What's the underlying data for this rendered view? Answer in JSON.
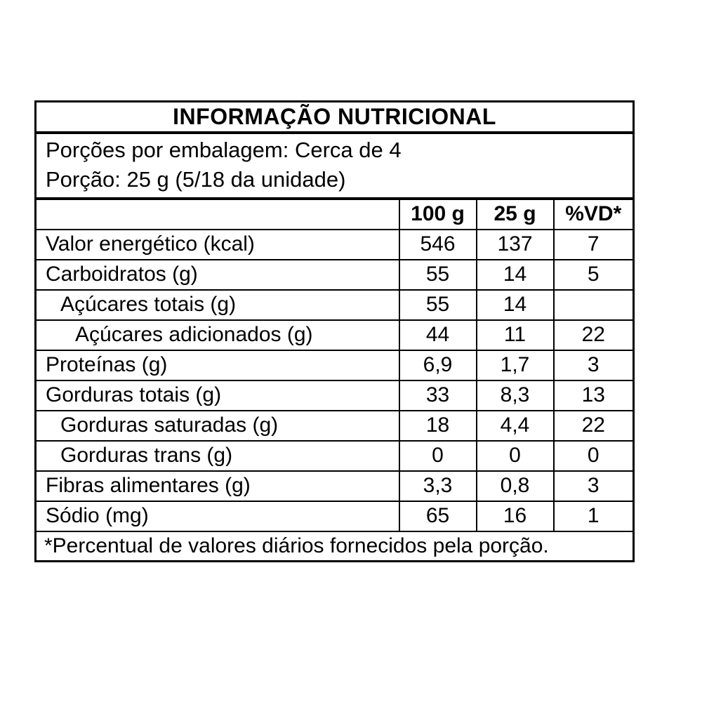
{
  "title": "INFORMAÇÃO NUTRICIONAL",
  "serving": {
    "line1": "Porções por embalagem: Cerca de 4",
    "line2": "Porção: 25 g (5/18 da unidade)"
  },
  "columns": {
    "col1": "100 g",
    "col2": "25 g",
    "col3": "%VD*"
  },
  "rows": [
    {
      "label": "Valor energético (kcal)",
      "indent": 0,
      "v100": "546",
      "v25": "137",
      "vd": "7"
    },
    {
      "label": "Carboidratos (g)",
      "indent": 0,
      "v100": "55",
      "v25": "14",
      "vd": "5"
    },
    {
      "label": "Açúcares totais (g)",
      "indent": 1,
      "v100": "55",
      "v25": "14",
      "vd": ""
    },
    {
      "label": "Açúcares adicionados (g)",
      "indent": 2,
      "v100": "44",
      "v25": "11",
      "vd": "22"
    },
    {
      "label": "Proteínas (g)",
      "indent": 0,
      "v100": "6,9",
      "v25": "1,7",
      "vd": "3"
    },
    {
      "label": "Gorduras totais (g)",
      "indent": 0,
      "v100": "33",
      "v25": "8,3",
      "vd": "13"
    },
    {
      "label": "Gorduras saturadas (g)",
      "indent": 1,
      "v100": "18",
      "v25": "4,4",
      "vd": "22"
    },
    {
      "label": "Gorduras trans (g)",
      "indent": 1,
      "v100": "0",
      "v25": "0",
      "vd": "0"
    },
    {
      "label": "Fibras alimentares (g)",
      "indent": 0,
      "v100": "3,3",
      "v25": "0,8",
      "vd": "3"
    },
    {
      "label": "Sódio (mg)",
      "indent": 0,
      "v100": "65",
      "v25": "16",
      "vd": "1"
    }
  ],
  "footnote": "*Percentual de valores diários fornecidos pela porção.",
  "colors": {
    "border": "#000000",
    "text": "#000000",
    "background": "#ffffff"
  }
}
